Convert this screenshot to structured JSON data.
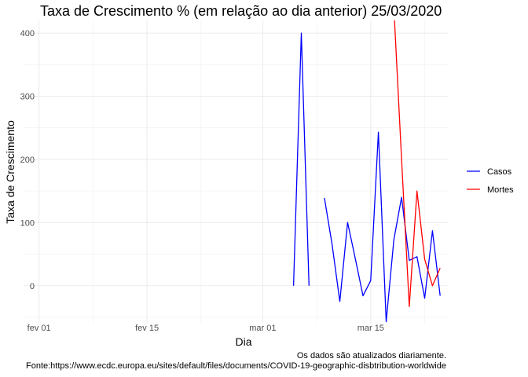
{
  "title": "Taxa de Crescimento % (em relação ao dia anterior)  25/03/2020",
  "caption_line1": "Os dados são atualizados diariamente.",
  "caption_line2": "Fonte:https://www.ecdc.europa.eu/sites/default/files/documents/COVID-19-geographic-disbtribution-worldwide",
  "chart_data": {
    "type": "line",
    "xlabel": "Dia",
    "ylabel": "Taxa de Crescimento",
    "x_ticks": [
      "fev 01",
      "fev 15",
      "mar 01",
      "mar 15"
    ],
    "y_ticks": [
      0,
      100,
      200,
      300,
      400
    ],
    "xlim": [
      "2020-01-30",
      "2020-03-25"
    ],
    "ylim": [
      -60,
      420
    ],
    "grid": true,
    "legend_position": "right",
    "colors": {
      "Casos": "#0000ff",
      "Mortes": "#ff0000"
    },
    "series": [
      {
        "name": "Casos",
        "points": [
          [
            "2020-03-05",
            0
          ],
          [
            "2020-03-06",
            400
          ],
          [
            "2020-03-07",
            0
          ],
          [
            "2020-03-08",
            null
          ],
          [
            "2020-03-09",
            139
          ],
          [
            "2020-03-10",
            65
          ],
          [
            "2020-03-11",
            -25
          ],
          [
            "2020-03-12",
            100
          ],
          [
            "2020-03-13",
            43
          ],
          [
            "2020-03-14",
            -16
          ],
          [
            "2020-03-15",
            8
          ],
          [
            "2020-03-16",
            243
          ],
          [
            "2020-03-17",
            -57
          ],
          [
            "2020-03-18",
            73
          ],
          [
            "2020-03-19",
            140
          ],
          [
            "2020-03-20",
            40
          ],
          [
            "2020-03-21",
            46
          ],
          [
            "2020-03-22",
            -20
          ],
          [
            "2020-03-23",
            87
          ],
          [
            "2020-03-24",
            -16
          ]
        ]
      },
      {
        "name": "Mortes",
        "points": [
          [
            "2020-03-18",
            440
          ],
          [
            "2020-03-19",
            200
          ],
          [
            "2020-03-20",
            -33
          ],
          [
            "2020-03-21",
            150
          ],
          [
            "2020-03-22",
            42
          ],
          [
            "2020-03-23",
            0
          ],
          [
            "2020-03-24",
            28
          ]
        ]
      }
    ]
  }
}
